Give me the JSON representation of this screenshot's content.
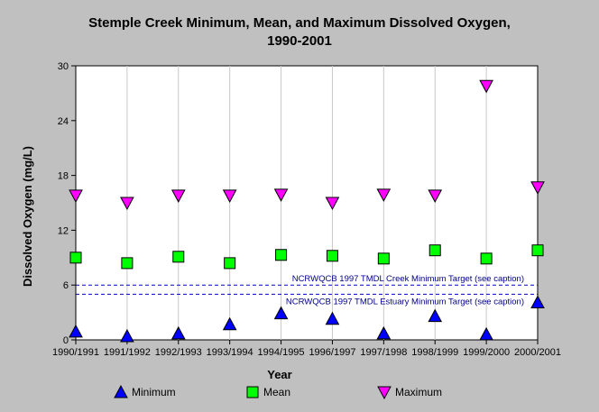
{
  "chart_data": {
    "type": "scatter",
    "title_lines": [
      "Stemple Creek Minimum, Mean, and Maximum Dissolved Oxygen,",
      "1990-2001"
    ],
    "xlabel": "Year",
    "ylabel": "Dissolved Oxygen (mg/L)",
    "categories": [
      "1990/1991",
      "1991/1992",
      "1992/1993",
      "1993/1994",
      "1994/1995",
      "1996/1997",
      "1997/1998",
      "1998/1999",
      "1999/2000",
      "2000/2001"
    ],
    "ylim": [
      0,
      30
    ],
    "yticks": [
      0,
      6,
      12,
      18,
      24,
      30
    ],
    "grid": "vertical",
    "series": [
      {
        "name": "Minimum",
        "marker": "triangle-up",
        "color": "#0000ff",
        "values": [
          0.9,
          0.4,
          0.7,
          1.7,
          2.9,
          2.3,
          0.7,
          2.6,
          0.6,
          4.1
        ]
      },
      {
        "name": "Mean",
        "marker": "square",
        "color": "#00ff00",
        "values": [
          9.0,
          8.4,
          9.1,
          8.4,
          9.3,
          9.2,
          8.9,
          9.8,
          8.9,
          9.8
        ]
      },
      {
        "name": "Maximum",
        "marker": "triangle-down",
        "color": "#ff00ff",
        "values": [
          15.8,
          15.0,
          15.8,
          15.8,
          15.9,
          15.0,
          15.9,
          15.8,
          27.8,
          16.7
        ]
      }
    ],
    "reference_lines": [
      {
        "value": 6.0,
        "label": "NCRWQCB 1997 TMDL Creek Minimum Target (see caption)",
        "color": "#0000cd"
      },
      {
        "value": 5.0,
        "label": "NCRWQCB 1997 TMDL Estuary Minimum Target (see caption)",
        "color": "#0000cd"
      }
    ],
    "legend_position": "bottom"
  }
}
